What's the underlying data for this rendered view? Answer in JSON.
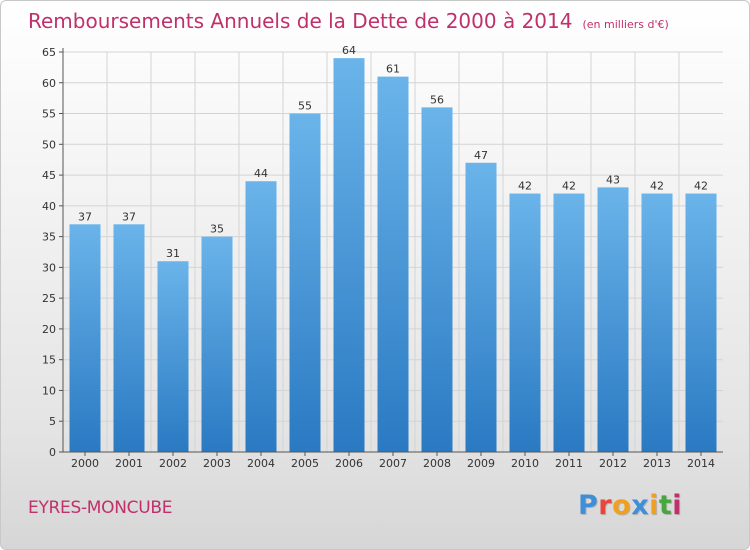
{
  "title": "Remboursements Annuels de la Dette de 2000 à 2014",
  "unit": "(en milliers d'€)",
  "commune": "EYRES-MONCUBE",
  "logo": {
    "text": "Proxiti",
    "colors": [
      "#3f8fd8",
      "#e8463c",
      "#f0a020",
      "#3f8fd8",
      "#f0a020",
      "#46a83c",
      "#c0306a"
    ]
  },
  "colors": {
    "bar_top": "#6ab4ea",
    "bar_bottom": "#2a79c2",
    "title": "#c0306a",
    "grid": "#d4d4d4",
    "axis": "#555555"
  },
  "chart_data": {
    "type": "bar",
    "categories": [
      "2000",
      "2001",
      "2002",
      "2003",
      "2004",
      "2005",
      "2006",
      "2007",
      "2008",
      "2009",
      "2010",
      "2011",
      "2012",
      "2013",
      "2014"
    ],
    "values": [
      37,
      37,
      31,
      35,
      44,
      55,
      64,
      61,
      56,
      47,
      42,
      42,
      43,
      42,
      42
    ],
    "ylim": [
      0,
      65
    ],
    "yticks": [
      0,
      5,
      10,
      15,
      20,
      25,
      30,
      35,
      40,
      45,
      50,
      55,
      60,
      65
    ],
    "grid": true,
    "data_labels": true,
    "legend": "none"
  }
}
